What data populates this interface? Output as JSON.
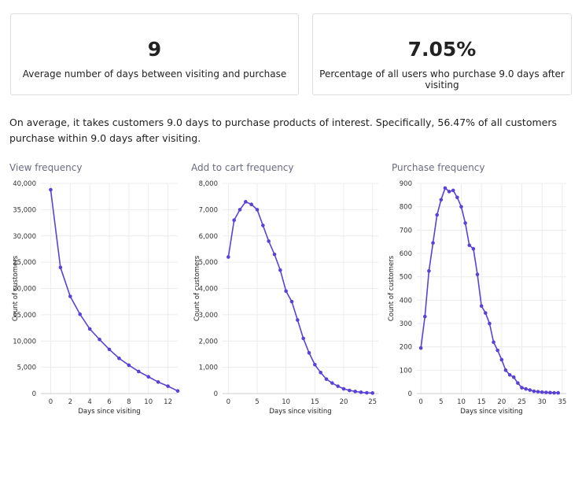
{
  "cards": [
    {
      "value": "9",
      "label": "Average number of days between visiting and purchase"
    },
    {
      "value": "7.05%",
      "label": "Percentage of all users who purchase 9.0 days after visiting"
    }
  ],
  "paragraph": "On average, it takes customers 9.0 days to purchase products of interest. Specifically, 56.47% of all customers  purchase within 9.0 days after visiting.",
  "chart_data": [
    {
      "type": "line",
      "title": "View frequency",
      "xlabel": "Days since visiting",
      "ylabel": "Count of customers",
      "color": "#5b41d6",
      "grid": true,
      "x": [
        0,
        1,
        2,
        3,
        4,
        5,
        6,
        7,
        8,
        9,
        10,
        11,
        12,
        13
      ],
      "series": [
        {
          "name": "View frequency",
          "color": "#5b41d6",
          "values": [
            38800,
            24000,
            18500,
            15100,
            12300,
            10300,
            8400,
            6700,
            5400,
            4200,
            3200,
            2200,
            1400,
            500
          ]
        }
      ],
      "xlim": [
        -1,
        13
      ],
      "xticks": [
        0,
        2,
        4,
        6,
        8,
        10,
        12
      ],
      "ylim": [
        0,
        40000
      ],
      "yticks": [
        0,
        {
          "value": 5000,
          "label": "5,000"
        },
        {
          "value": 10000,
          "label": "10,000"
        },
        {
          "value": 15000,
          "label": "15,000"
        },
        {
          "value": 20000,
          "label": "20,000"
        },
        {
          "value": 25000,
          "label": "25,000"
        },
        {
          "value": 30000,
          "label": "30,000"
        },
        {
          "value": 35000,
          "label": "35,000"
        },
        {
          "value": 40000,
          "label": "40,000"
        }
      ]
    },
    {
      "type": "line",
      "title": "Add to cart frequency",
      "xlabel": "Days since visiting",
      "ylabel": "Count of customers",
      "color": "#5b41d6",
      "grid": true,
      "x": [
        0,
        1,
        2,
        3,
        4,
        5,
        6,
        7,
        8,
        9,
        10,
        11,
        12,
        13,
        14,
        15,
        16,
        17,
        18,
        19,
        20,
        21,
        22,
        23,
        24,
        25
      ],
      "series": [
        {
          "name": "Add to cart frequency",
          "color": "#5b41d6",
          "values": [
            5200,
            6600,
            7000,
            7300,
            7200,
            7000,
            6400,
            5800,
            5300,
            4700,
            3900,
            3500,
            2800,
            2100,
            1550,
            1100,
            800,
            550,
            400,
            280,
            180,
            120,
            80,
            50,
            30,
            20
          ]
        }
      ],
      "xlim": [
        -1,
        26
      ],
      "xticks": [
        0,
        5,
        10,
        15,
        20,
        25
      ],
      "ylim": [
        0,
        8000
      ],
      "yticks": [
        0,
        {
          "value": 1000,
          "label": "1,000"
        },
        {
          "value": 2000,
          "label": "2,000"
        },
        {
          "value": 3000,
          "label": "3,000"
        },
        {
          "value": 4000,
          "label": "4,000"
        },
        {
          "value": 5000,
          "label": "5,000"
        },
        {
          "value": 6000,
          "label": "6,000"
        },
        {
          "value": 7000,
          "label": "7,000"
        },
        {
          "value": 8000,
          "label": "8,000"
        }
      ]
    },
    {
      "type": "line",
      "title": "Purchase frequency",
      "xlabel": "Days since visiting",
      "ylabel": "Count of customers",
      "color": "#5b41d6",
      "grid": true,
      "x": [
        0,
        1,
        2,
        3,
        4,
        5,
        6,
        7,
        8,
        9,
        10,
        11,
        12,
        13,
        14,
        15,
        16,
        17,
        18,
        19,
        20,
        21,
        22,
        23,
        24,
        25,
        26,
        27,
        28,
        29,
        30,
        31,
        32,
        33,
        34
      ],
      "series": [
        {
          "name": "Purchase frequency",
          "color": "#5b41d6",
          "values": [
            195,
            330,
            525,
            645,
            765,
            830,
            880,
            865,
            870,
            840,
            800,
            730,
            635,
            620,
            510,
            375,
            345,
            300,
            220,
            185,
            145,
            100,
            80,
            70,
            45,
            25,
            20,
            15,
            10,
            8,
            6,
            5,
            4,
            3,
            3
          ]
        }
      ],
      "xlim": [
        -1,
        36
      ],
      "xticks": [
        0,
        5,
        10,
        15,
        20,
        25,
        30,
        35
      ],
      "ylim": [
        0,
        900
      ],
      "yticks": [
        0,
        100,
        200,
        300,
        400,
        500,
        600,
        700,
        800,
        900
      ]
    }
  ]
}
